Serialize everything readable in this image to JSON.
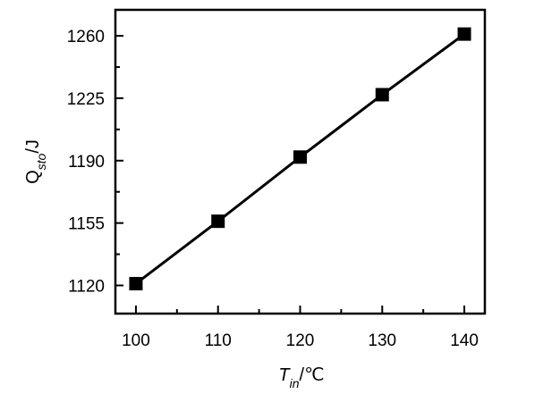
{
  "chart_data": {
    "type": "line",
    "x": [
      100,
      110,
      120,
      130,
      140
    ],
    "series": [
      {
        "values": [
          1121,
          1156,
          1192,
          1227,
          1261
        ],
        "marker": "square",
        "color": "#000000"
      }
    ],
    "xticks": [
      "100",
      "110",
      "120",
      "130",
      "140"
    ],
    "yticks": [
      "1120",
      "1155",
      "1190",
      "1225",
      "1260"
    ],
    "xlabel": {
      "main": "T",
      "sub": "in",
      "unit": "/℃"
    },
    "ylabel": {
      "main": "Q",
      "sub": "sto",
      "unit": "/J"
    },
    "xlim": [
      97.5,
      142.5
    ],
    "ylim": [
      1104.2,
      1274.6
    ],
    "grid": false,
    "legend": "none"
  }
}
